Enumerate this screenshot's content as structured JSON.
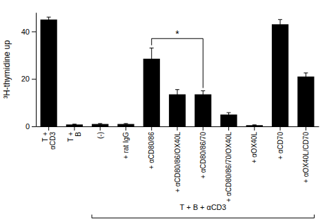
{
  "chart_data": {
    "type": "bar",
    "categories": [
      "T +\nαCD3",
      "T +\nB",
      "(-)",
      "+ rat IgG",
      "+ αCD80/86",
      "+ αCD80/86/OX40L",
      "+ αCD80/86/70",
      "+ αCD80/86/70/OX40L",
      "+ αOX40L",
      "+ αCD70",
      "+ αOX40L/CD70"
    ],
    "values": [
      45,
      0.8,
      1.0,
      1.0,
      28.5,
      13.5,
      13.5,
      5.0,
      0.5,
      43.0,
      21.0
    ],
    "errors": [
      1.0,
      0.15,
      0.2,
      0.2,
      4.5,
      2.0,
      1.5,
      0.8,
      0.15,
      2.0,
      1.5
    ],
    "color": "#000000",
    "ylabel": "³H-thymidine up",
    "ylim": [
      0,
      48
    ],
    "yticks": [
      0,
      20,
      40
    ],
    "grid": false,
    "annotations": [
      {
        "text": "T + B + αCD3",
        "from": 2,
        "to": 10
      },
      {
        "text": "*",
        "from": 4,
        "to": 6,
        "y": 37.0
      }
    ]
  }
}
